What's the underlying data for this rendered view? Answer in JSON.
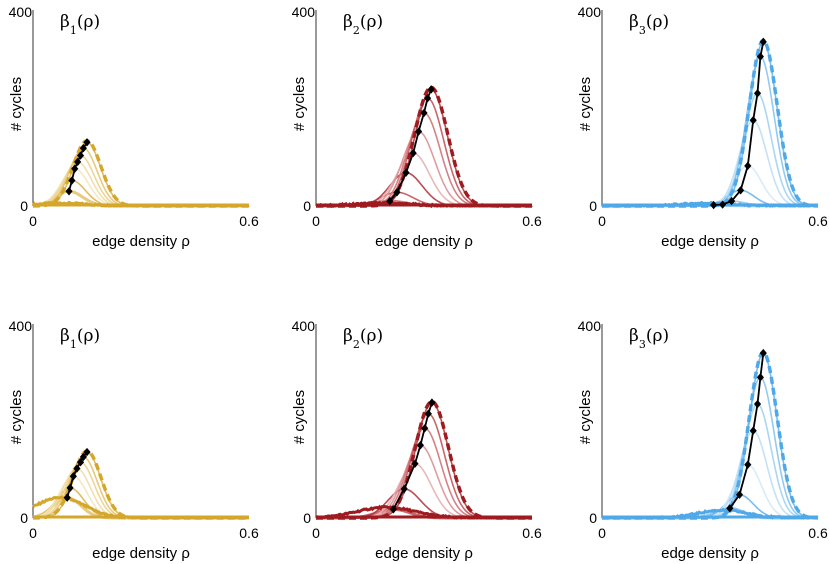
{
  "figure": {
    "x_label_base": "edge density",
    "x_label_symbol": "ρ",
    "y_label": "# cycles"
  },
  "chart_data": [
    {
      "type": "line",
      "title": "β1(ρ)",
      "title_greek": "β",
      "title_sub": "1",
      "title_arg": "(ρ)",
      "xlabel": "edge density ρ",
      "ylabel": "# cycles",
      "xlim": [
        0,
        0.6
      ],
      "ylim": [
        0,
        400
      ],
      "x_ticks": [
        "0",
        "0.6"
      ],
      "y_ticks": [
        "0",
        "400"
      ],
      "color": "#D4A62B",
      "palette": [
        "#D4A62B",
        "#DDB651",
        "#E4C46D",
        "#EBD28C",
        "#F0DDA6",
        "#F4E6BE"
      ],
      "peak_points": [
        {
          "x": 0.1,
          "y": 30
        },
        {
          "x": 0.108,
          "y": 52
        },
        {
          "x": 0.116,
          "y": 76
        },
        {
          "x": 0.124,
          "y": 90
        },
        {
          "x": 0.132,
          "y": 103
        },
        {
          "x": 0.14,
          "y": 118
        },
        {
          "x": 0.15,
          "y": 130
        }
      ],
      "dashed_peak": {
        "x": 0.15,
        "y": 133
      },
      "base_sigma": 0.038,
      "source_bump": 0
    },
    {
      "type": "line",
      "title": "β2(ρ)",
      "title_greek": "β",
      "title_sub": "2",
      "title_arg": "(ρ)",
      "xlabel": "edge density ρ",
      "ylabel": "# cycles",
      "xlim": [
        0,
        0.6
      ],
      "ylim": [
        0,
        400
      ],
      "x_ticks": [
        "0",
        "0.6"
      ],
      "y_ticks": [
        "0",
        "400"
      ],
      "color": "#9E1B20",
      "palette": [
        "#9E1B20",
        "#B33A40",
        "#C4575C",
        "#D07479",
        "#DB9296",
        "#E6B0B3"
      ],
      "peak_points": [
        {
          "x": 0.205,
          "y": 10
        },
        {
          "x": 0.225,
          "y": 28
        },
        {
          "x": 0.25,
          "y": 68
        },
        {
          "x": 0.27,
          "y": 108
        },
        {
          "x": 0.285,
          "y": 152
        },
        {
          "x": 0.3,
          "y": 190
        },
        {
          "x": 0.31,
          "y": 220
        },
        {
          "x": 0.32,
          "y": 238
        }
      ],
      "dashed_peak": {
        "x": 0.32,
        "y": 242
      },
      "base_sigma": 0.045,
      "source_bump": 0
    },
    {
      "type": "line",
      "title": "β3(ρ)",
      "title_greek": "β",
      "title_sub": "3",
      "title_arg": "(ρ)",
      "xlabel": "edge density ρ",
      "ylabel": "# cycles",
      "xlim": [
        0,
        0.6
      ],
      "ylim": [
        0,
        400
      ],
      "x_ticks": [
        "0",
        "0.6"
      ],
      "y_ticks": [
        "0",
        "400"
      ],
      "color": "#4FA8E8",
      "palette": [
        "#4FA8E8",
        "#6BB6EC",
        "#86C4F0",
        "#A1D1F3",
        "#BCDEF6",
        "#D4E9F8"
      ],
      "peak_points": [
        {
          "x": 0.31,
          "y": 2
        },
        {
          "x": 0.335,
          "y": 3
        },
        {
          "x": 0.36,
          "y": 10
        },
        {
          "x": 0.385,
          "y": 32
        },
        {
          "x": 0.405,
          "y": 82
        },
        {
          "x": 0.42,
          "y": 175
        },
        {
          "x": 0.432,
          "y": 230
        },
        {
          "x": 0.44,
          "y": 305
        },
        {
          "x": 0.448,
          "y": 335
        }
      ],
      "dashed_peak": {
        "x": 0.448,
        "y": 338
      },
      "base_sigma": 0.038,
      "source_bump": 0
    },
    {
      "type": "line",
      "title": "β1(ρ)",
      "title_greek": "β",
      "title_sub": "1",
      "title_arg": "(ρ)",
      "xlabel": "edge density ρ",
      "ylabel": "# cycles",
      "xlim": [
        0,
        0.6
      ],
      "ylim": [
        0,
        400
      ],
      "x_ticks": [
        "0",
        "0.6"
      ],
      "y_ticks": [
        "0",
        "400"
      ],
      "color": "#D4A62B",
      "palette": [
        "#D4A62B",
        "#DDB651",
        "#E4C46D",
        "#EBD28C",
        "#F0DDA6",
        "#F4E6BE"
      ],
      "peak_points": [
        {
          "x": 0.095,
          "y": 42
        },
        {
          "x": 0.103,
          "y": 62
        },
        {
          "x": 0.112,
          "y": 86
        },
        {
          "x": 0.122,
          "y": 102
        },
        {
          "x": 0.132,
          "y": 115
        },
        {
          "x": 0.14,
          "y": 126
        },
        {
          "x": 0.15,
          "y": 136
        }
      ],
      "dashed_peak": {
        "x": 0.15,
        "y": 138
      },
      "base_sigma": 0.038,
      "source_bump": 42
    },
    {
      "type": "line",
      "title": "β2(ρ)",
      "title_greek": "β",
      "title_sub": "2",
      "title_arg": "(ρ)",
      "xlabel": "edge density ρ",
      "ylabel": "# cycles",
      "xlim": [
        0,
        0.6
      ],
      "ylim": [
        0,
        400
      ],
      "x_ticks": [
        "0",
        "0.6"
      ],
      "y_ticks": [
        "0",
        "400"
      ],
      "color": "#9E1B20",
      "palette": [
        "#9E1B20",
        "#B33A40",
        "#C4575C",
        "#D07479",
        "#DB9296",
        "#E6B0B3"
      ],
      "peak_points": [
        {
          "x": 0.215,
          "y": 18
        },
        {
          "x": 0.245,
          "y": 60
        },
        {
          "x": 0.275,
          "y": 112
        },
        {
          "x": 0.29,
          "y": 150
        },
        {
          "x": 0.302,
          "y": 185
        },
        {
          "x": 0.312,
          "y": 215
        },
        {
          "x": 0.322,
          "y": 238
        }
      ],
      "dashed_peak": {
        "x": 0.322,
        "y": 240
      },
      "base_sigma": 0.045,
      "source_bump": 22
    },
    {
      "type": "line",
      "title": "β3(ρ)",
      "title_greek": "β",
      "title_sub": "3",
      "title_arg": "(ρ)",
      "xlabel": "edge density ρ",
      "ylabel": "# cycles",
      "xlim": [
        0,
        0.6
      ],
      "ylim": [
        0,
        400
      ],
      "x_ticks": [
        "0",
        "0.6"
      ],
      "y_ticks": [
        "0",
        "400"
      ],
      "color": "#4FA8E8",
      "palette": [
        "#4FA8E8",
        "#6BB6EC",
        "#86C4F0",
        "#A1D1F3",
        "#BCDEF6",
        "#D4E9F8"
      ],
      "peak_points": [
        {
          "x": 0.355,
          "y": 20
        },
        {
          "x": 0.382,
          "y": 48
        },
        {
          "x": 0.405,
          "y": 110
        },
        {
          "x": 0.42,
          "y": 180
        },
        {
          "x": 0.432,
          "y": 235
        },
        {
          "x": 0.44,
          "y": 290
        },
        {
          "x": 0.448,
          "y": 340
        }
      ],
      "dashed_peak": {
        "x": 0.448,
        "y": 342
      },
      "base_sigma": 0.038,
      "source_bump": 16
    }
  ]
}
